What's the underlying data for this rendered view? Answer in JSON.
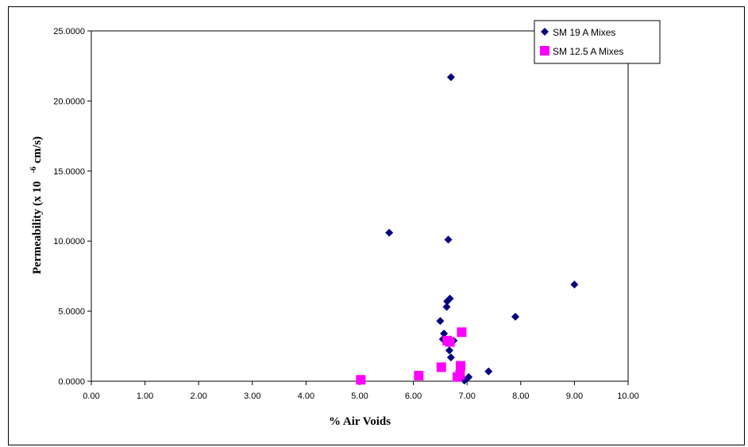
{
  "chart_data": {
    "type": "scatter",
    "title": "",
    "xlabel": "% Air Voids",
    "ylabel_main": "Permeability (x 10",
    "ylabel_exp": "-6",
    "ylabel_unit": "cm/s)",
    "xlim": [
      0,
      10
    ],
    "ylim": [
      0,
      25
    ],
    "xticks": [
      "0.00",
      "1.00",
      "2.00",
      "3.00",
      "4.00",
      "5.00",
      "6.00",
      "7.00",
      "8.00",
      "9.00",
      "10.00"
    ],
    "yticks": [
      "0.0000",
      "5.0000",
      "10.0000",
      "15.0000",
      "20.0000",
      "25.0000"
    ],
    "legend_position": "top-right",
    "series": [
      {
        "name": "SM 19 A Mixes",
        "marker": "diamond",
        "color": "#000080",
        "points": [
          [
            6.7,
            21.7
          ],
          [
            5.55,
            10.6
          ],
          [
            6.65,
            10.1
          ],
          [
            9.0,
            6.9
          ],
          [
            6.68,
            5.9
          ],
          [
            6.63,
            5.7
          ],
          [
            6.62,
            5.3
          ],
          [
            7.9,
            4.6
          ],
          [
            6.5,
            4.3
          ],
          [
            6.57,
            3.4
          ],
          [
            6.55,
            3.0
          ],
          [
            6.75,
            2.9
          ],
          [
            6.67,
            2.2
          ],
          [
            6.7,
            1.7
          ],
          [
            7.4,
            0.7
          ],
          [
            7.03,
            0.3
          ],
          [
            6.95,
            0.05
          ]
        ]
      },
      {
        "name": "SM 12.5 A Mixes",
        "marker": "square",
        "color": "#FF00FF",
        "points": [
          [
            6.9,
            3.5
          ],
          [
            6.63,
            2.9
          ],
          [
            6.68,
            2.8
          ],
          [
            6.88,
            1.1
          ],
          [
            6.52,
            1.0
          ],
          [
            6.1,
            0.4
          ],
          [
            6.87,
            0.45
          ],
          [
            6.82,
            0.3
          ],
          [
            5.02,
            0.1
          ]
        ]
      }
    ]
  }
}
